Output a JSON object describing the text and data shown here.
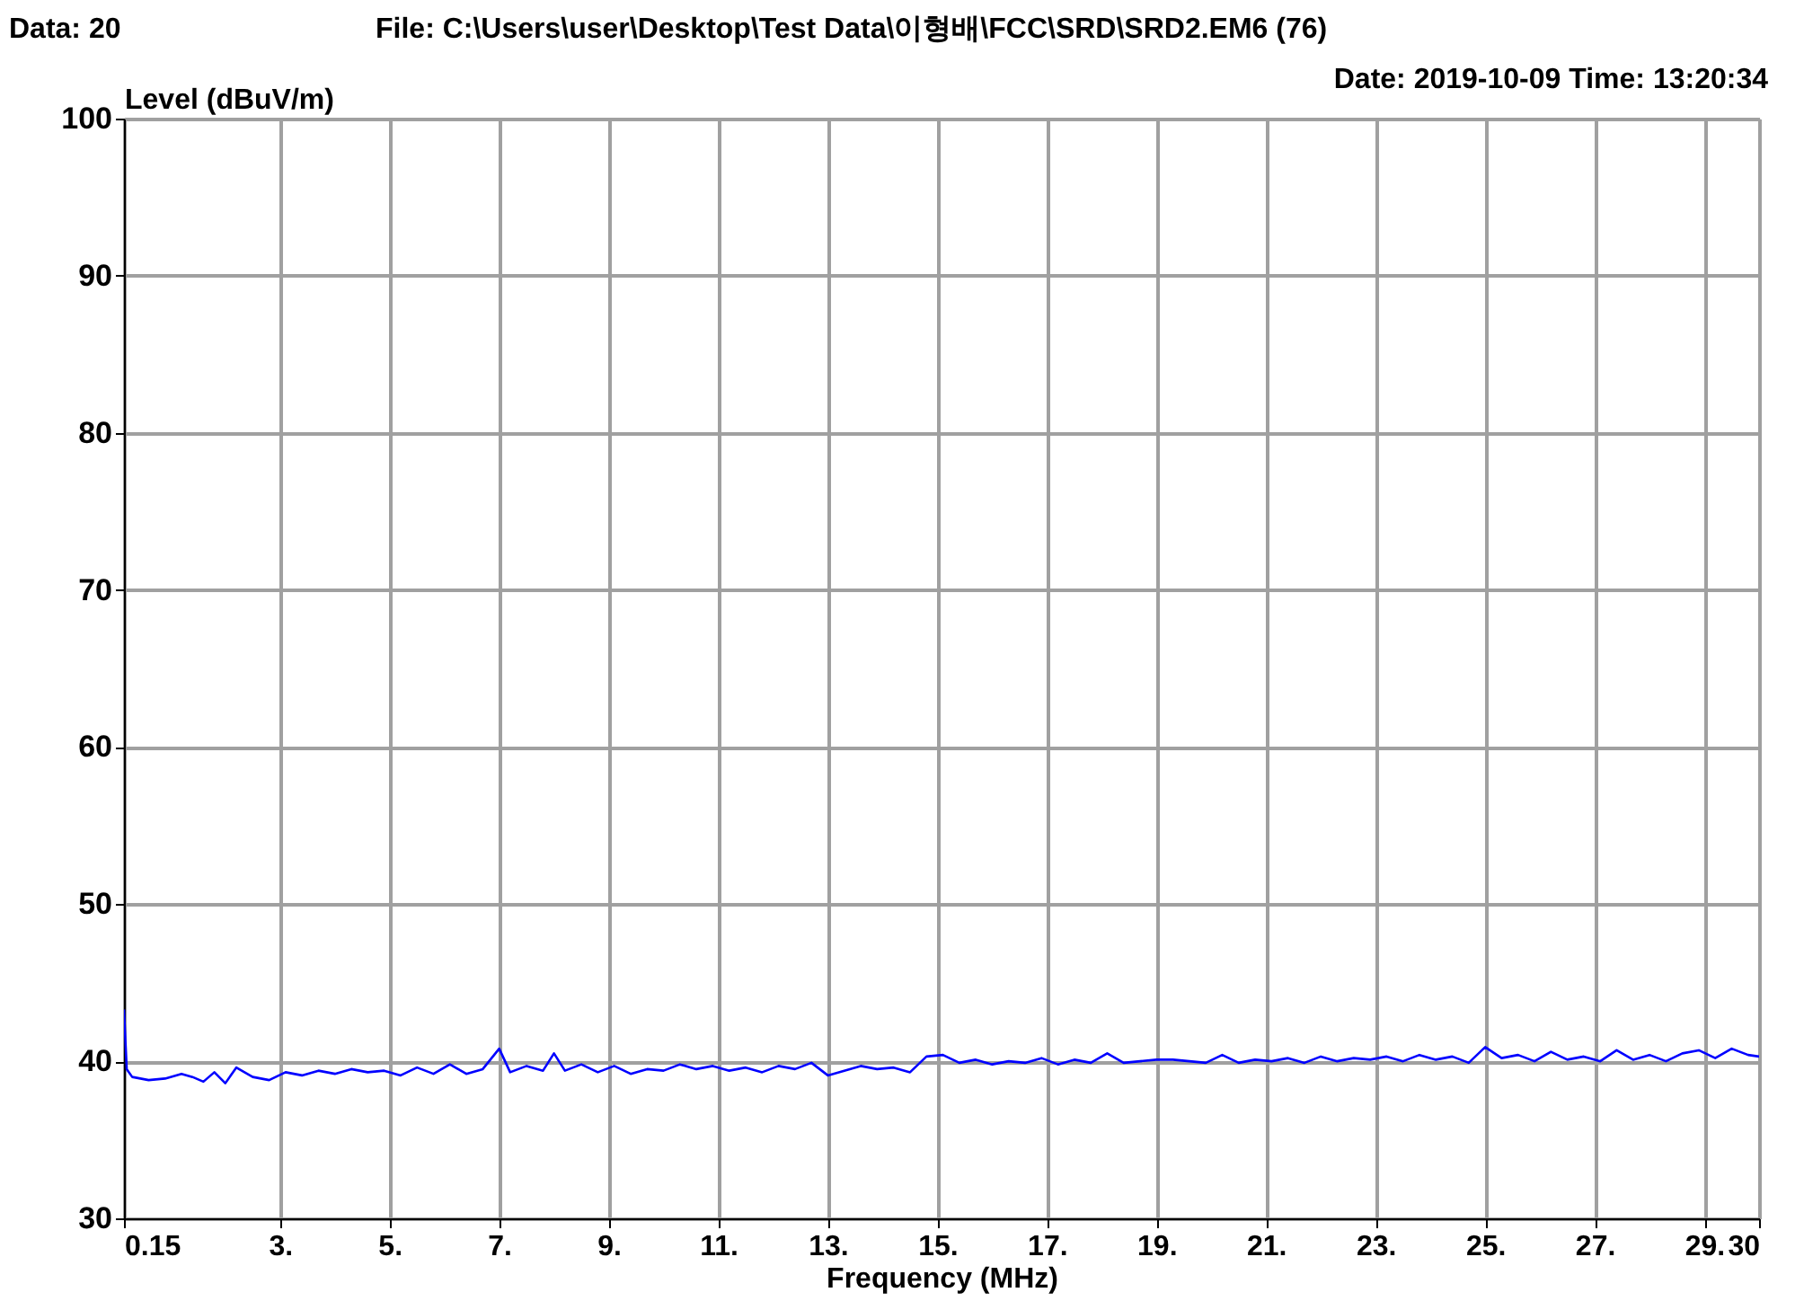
{
  "chart_data": {
    "type": "line",
    "xlabel": "Frequency (MHz)",
    "ylabel": "Level (dBuV/m)",
    "annotations": [
      "Data: 20",
      "File: C:\\Users\\user\\Desktop\\Test Data\\이형배\\FCC\\SRD\\SRD2.EM6  (76)",
      "Date: 2019-10-09  Time: 13:20:34"
    ],
    "xlim": [
      0.15,
      30
    ],
    "ylim": [
      30,
      100
    ],
    "xticks": [
      {
        "value": 0.15,
        "label": "0.15"
      },
      {
        "value": 3,
        "label": "3."
      },
      {
        "value": 5,
        "label": "5."
      },
      {
        "value": 7,
        "label": "7."
      },
      {
        "value": 9,
        "label": "9."
      },
      {
        "value": 11,
        "label": "11."
      },
      {
        "value": 13,
        "label": "13."
      },
      {
        "value": 15,
        "label": "15."
      },
      {
        "value": 17,
        "label": "17."
      },
      {
        "value": 19,
        "label": "19."
      },
      {
        "value": 21,
        "label": "21."
      },
      {
        "value": 23,
        "label": "23."
      },
      {
        "value": 25,
        "label": "25."
      },
      {
        "value": 27,
        "label": "27."
      },
      {
        "value": 29,
        "label": "29."
      },
      30
    ],
    "yticks": [
      30,
      40,
      50,
      60,
      70,
      80,
      90,
      100
    ],
    "grid": true,
    "marker": "none",
    "line_style": "solid",
    "series": [
      {
        "color": "#0000ff",
        "x": [
          0.15,
          0.2,
          0.3,
          0.6,
          0.9,
          1.2,
          1.4,
          1.6,
          1.8,
          2.0,
          2.2,
          2.5,
          2.8,
          3.1,
          3.4,
          3.7,
          4.0,
          4.3,
          4.6,
          4.9,
          5.2,
          5.5,
          5.8,
          6.1,
          6.4,
          6.7,
          7.0,
          7.2,
          7.5,
          7.8,
          8.0,
          8.2,
          8.5,
          8.8,
          9.1,
          9.4,
          9.7,
          10.0,
          10.3,
          10.6,
          10.9,
          11.2,
          11.5,
          11.8,
          12.1,
          12.4,
          12.7,
          13.0,
          13.3,
          13.6,
          13.9,
          14.2,
          14.5,
          14.8,
          15.1,
          15.4,
          15.7,
          16.0,
          16.3,
          16.6,
          16.9,
          17.2,
          17.5,
          17.8,
          18.1,
          18.4,
          18.7,
          19.0,
          19.3,
          19.6,
          19.9,
          20.2,
          20.5,
          20.8,
          21.1,
          21.4,
          21.7,
          22.0,
          22.3,
          22.6,
          22.9,
          23.2,
          23.5,
          23.8,
          24.1,
          24.4,
          24.7,
          25.0,
          25.3,
          25.6,
          25.9,
          26.2,
          26.5,
          26.8,
          27.1,
          27.4,
          27.7,
          28.0,
          28.3,
          28.6,
          28.9,
          29.2,
          29.5,
          29.8,
          30.0
        ],
        "values": [
          43.3,
          39.5,
          39.0,
          38.8,
          38.9,
          39.2,
          39.0,
          38.7,
          39.3,
          38.6,
          39.6,
          39.0,
          38.8,
          39.3,
          39.1,
          39.4,
          39.2,
          39.5,
          39.3,
          39.4,
          39.1,
          39.6,
          39.2,
          39.8,
          39.2,
          39.5,
          40.8,
          39.3,
          39.7,
          39.4,
          40.5,
          39.4,
          39.8,
          39.3,
          39.7,
          39.2,
          39.5,
          39.4,
          39.8,
          39.5,
          39.7,
          39.4,
          39.6,
          39.3,
          39.7,
          39.5,
          39.9,
          39.1,
          39.4,
          39.7,
          39.5,
          39.6,
          39.3,
          40.3,
          40.4,
          39.9,
          40.1,
          39.8,
          40.0,
          39.9,
          40.2,
          39.8,
          40.1,
          39.9,
          40.5,
          39.9,
          40.0,
          40.1,
          40.1,
          40.0,
          39.9,
          40.4,
          39.9,
          40.1,
          40.0,
          40.2,
          39.9,
          40.3,
          40.0,
          40.2,
          40.1,
          40.3,
          40.0,
          40.4,
          40.1,
          40.3,
          39.9,
          40.9,
          40.2,
          40.4,
          40.0,
          40.6,
          40.1,
          40.3,
          40.0,
          40.7,
          40.1,
          40.4,
          40.0,
          40.5,
          40.7,
          40.2,
          40.8,
          40.4,
          40.3
        ]
      }
    ]
  }
}
